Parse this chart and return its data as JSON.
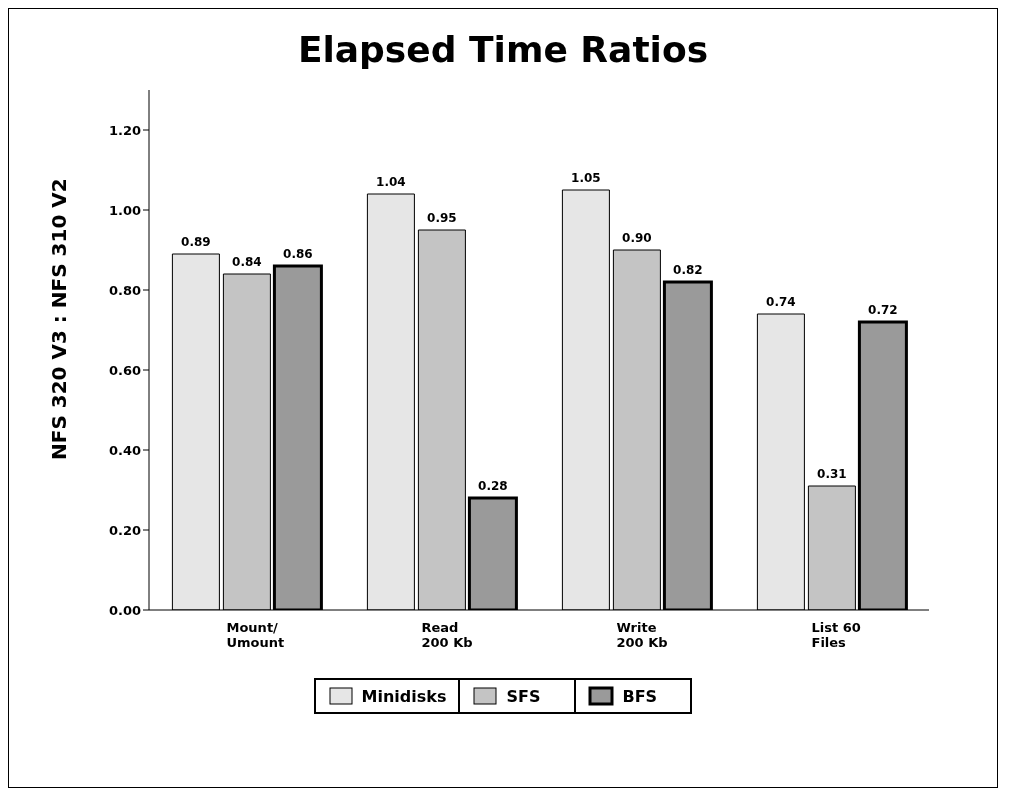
{
  "chart_data": {
    "type": "bar",
    "title": "Elapsed Time Ratios",
    "ylabel": "NFS 320 V3 : NFS 310 V2",
    "categories": [
      "Mount/\nUmount",
      "Read\n200 Kb",
      "Write\n200 Kb",
      "List 60\nFiles"
    ],
    "series": [
      {
        "name": "Minidisks",
        "color": "#e6e6e6",
        "values": [
          0.89,
          1.04,
          1.05,
          0.74
        ],
        "value_labels": [
          "0.89",
          "1.04",
          "1.05",
          "0.74"
        ]
      },
      {
        "name": "SFS",
        "color": "#c4c4c4",
        "values": [
          0.84,
          0.95,
          0.9,
          0.31
        ],
        "value_labels": [
          "0.84",
          "0.95",
          "0.90",
          "0.31"
        ]
      },
      {
        "name": "BFS",
        "color": "#9a9a9a",
        "values": [
          0.86,
          0.28,
          0.82,
          0.72
        ],
        "value_labels": [
          "0.86",
          "0.28",
          "0.82",
          "0.72"
        ]
      }
    ],
    "ylim": [
      0,
      1.3
    ],
    "yticks": [
      {
        "value": 0,
        "label": "0.00"
      },
      {
        "value": 0.2,
        "label": "0.20"
      },
      {
        "value": 0.4,
        "label": "0.40"
      },
      {
        "value": 0.6,
        "label": "0.60"
      },
      {
        "value": 0.8,
        "label": "0.80"
      },
      {
        "value": 1.0,
        "label": "1.00"
      },
      {
        "value": 1.2,
        "label": "1.20"
      }
    ],
    "grid": false,
    "legend": "bottom"
  }
}
